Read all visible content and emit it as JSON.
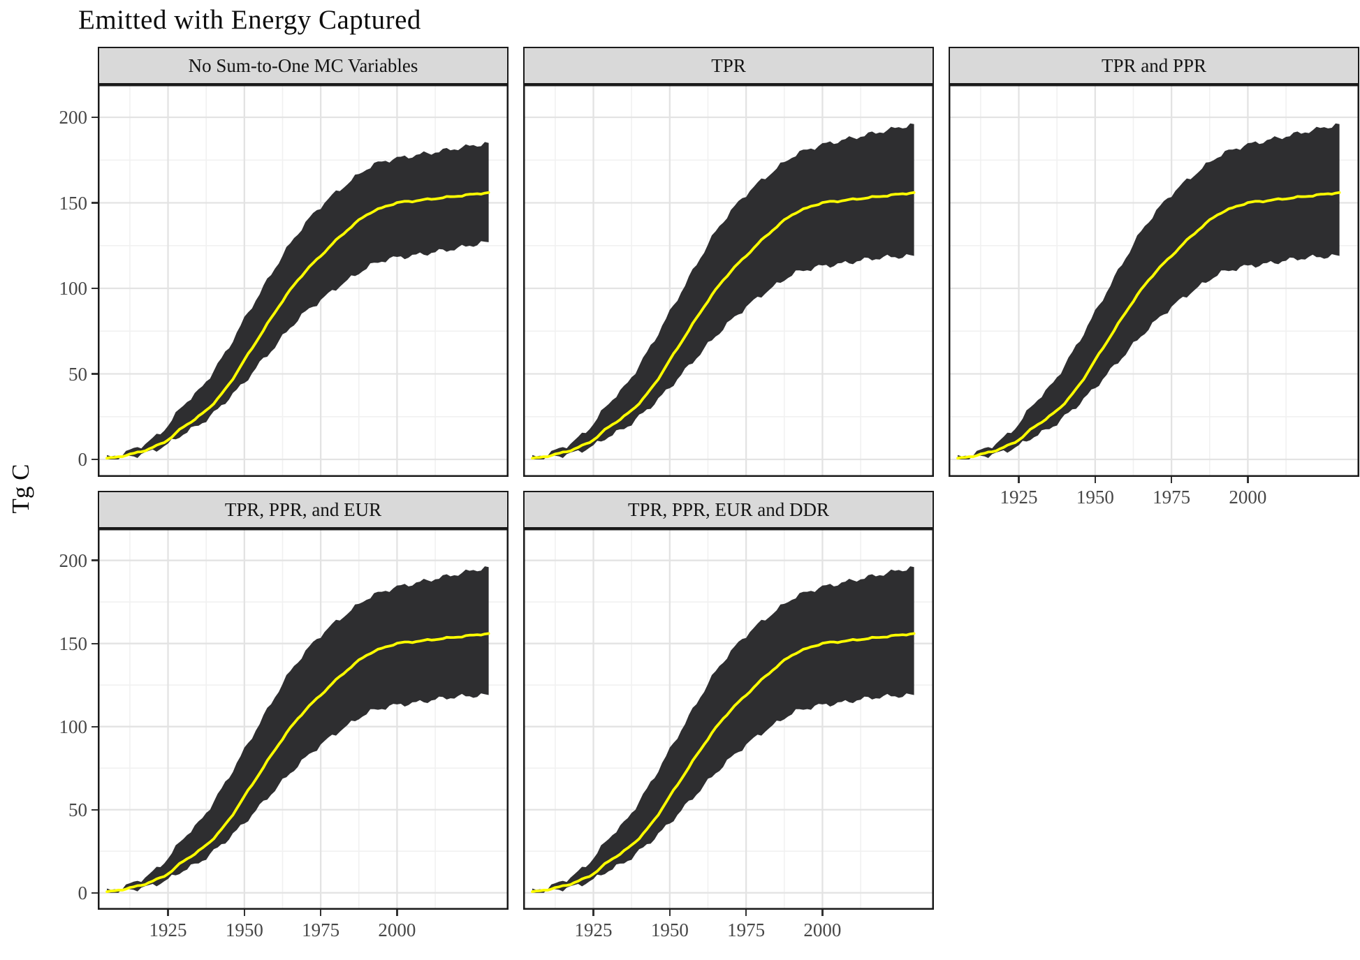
{
  "chart_data": {
    "type": "area",
    "title": "Emitted with Energy Captured",
    "ylabel": "Tg C",
    "xlabel": "",
    "legend": "none",
    "grid": true,
    "x_ticks": [
      1925,
      1950,
      1975,
      2000
    ],
    "y_ticks": [
      0,
      50,
      100,
      150,
      200
    ],
    "x_minor": [
      1912.5,
      1937.5,
      1962.5,
      1987.5,
      2012.5
    ],
    "y_minor": [
      25,
      75,
      125,
      175
    ],
    "xlim": [
      1902,
      2036.5
    ],
    "ylim": [
      -10.2,
      219.2
    ],
    "facets": [
      {
        "label": "No Sum-to-One MC Variables",
        "row": 0,
        "col": 0,
        "band": "narrow",
        "x_axis": false,
        "y_axis": true
      },
      {
        "label": "TPR",
        "row": 0,
        "col": 1,
        "band": "wide",
        "x_axis": false,
        "y_axis": false
      },
      {
        "label": "TPR and PPR",
        "row": 0,
        "col": 2,
        "band": "wide",
        "x_axis": true,
        "y_axis": false
      },
      {
        "label": "TPR, PPR, and EUR",
        "row": 1,
        "col": 0,
        "band": "wide",
        "x_axis": true,
        "y_axis": true
      },
      {
        "label": "TPR, PPR, EUR and DDR",
        "row": 1,
        "col": 1,
        "band": "wide",
        "x_axis": true,
        "y_axis": false
      }
    ],
    "series": {
      "years": [
        1905,
        1910,
        1915,
        1920,
        1925,
        1930,
        1935,
        1940,
        1945,
        1950,
        1955,
        1960,
        1965,
        1970,
        1975,
        1980,
        1985,
        1990,
        1995,
        2000,
        2005,
        2010,
        2015,
        2020,
        2025,
        2030
      ],
      "median": [
        0.5,
        2,
        4,
        7,
        11.5,
        19,
        25,
        33,
        44,
        58,
        72,
        86,
        99,
        110,
        119,
        128,
        136,
        143,
        147,
        150,
        151,
        152,
        153,
        154,
        155,
        156
      ],
      "bands": {
        "narrow": {
          "upper": [
            1,
            3.5,
            7,
            12,
            20,
            32,
            40,
            52,
            66,
            82,
            97,
            112,
            126,
            138,
            148,
            156,
            163,
            170,
            174,
            176,
            177.5,
            179,
            180.5,
            182,
            183.5,
            185
          ],
          "lower": [
            0,
            1,
            2.5,
            5,
            9,
            15,
            20,
            27,
            36,
            45,
            56,
            66,
            77,
            86,
            93,
            100,
            106,
            112,
            116,
            118,
            119,
            120.5,
            122,
            123.5,
            125.5,
            127
          ]
        },
        "wide": {
          "upper": [
            1,
            3.5,
            7,
            12.5,
            21,
            33,
            42,
            55,
            70,
            86,
            102,
            118,
            133,
            145,
            155,
            163,
            170,
            177,
            181,
            184,
            186,
            188,
            190,
            192,
            194,
            196
          ],
          "lower": [
            0,
            1,
            2.5,
            4.5,
            8,
            13.5,
            18,
            25,
            33,
            42,
            52,
            62,
            72,
            81,
            89,
            96,
            102,
            108,
            111,
            113,
            114,
            115.5,
            117,
            118,
            118.5,
            119
          ]
        }
      }
    },
    "colors": {
      "ribbon": "#2e2e30",
      "median_line": "#ffff00",
      "strip_bg": "#d9d9d9",
      "panel_border": "#1a1a1a",
      "grid_major": "#e3e3e3",
      "grid_minor": "#f1f1f1",
      "tick_mark": "#333333",
      "tick_label": "#474747",
      "text": "#0d0d0d"
    }
  }
}
